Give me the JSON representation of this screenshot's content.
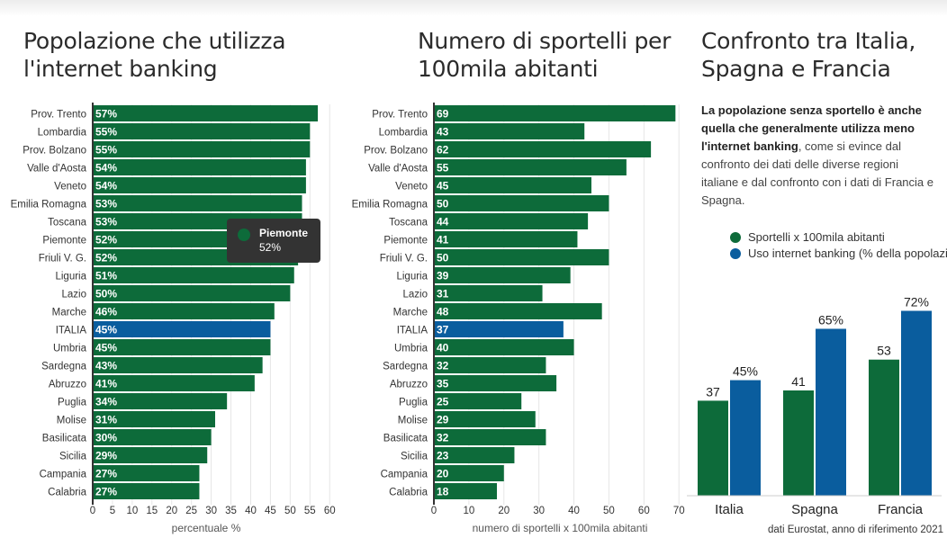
{
  "colors": {
    "green": "#0d6b3a",
    "blue": "#0a5d9e",
    "axis": "#333333",
    "grid": "#e6e6e6"
  },
  "titles": {
    "left": "Popolazione che utilizza l'internet banking",
    "middle": "Numero di sportelli per 100mila abitanti",
    "right": "Confronto tra Italia, Spagna e Francia"
  },
  "paragraph": {
    "bold": "La popolazione senza sportello è anche quella che generalmente utilizza meno l'internet banking",
    "normal": ", come si evince dal confronto dei dati delle diverse regioni italiane e dal confronto con i dati di Francia e Spagna."
  },
  "tooltip": {
    "name": "Piemonte",
    "value": "52%"
  },
  "source": "dati Eurostat, anno di riferimento 2021",
  "chart_data": [
    {
      "type": "bar",
      "orientation": "horizontal",
      "title": "Popolazione che utilizza l'internet banking",
      "categories": [
        "Prov. Trento",
        "Lombardia",
        "Prov. Bolzano",
        "Valle d'Aosta",
        "Veneto",
        "Emilia Romagna",
        "Toscana",
        "Piemonte",
        "Friuli V. G.",
        "Liguria",
        "Lazio",
        "Marche",
        "ITALIA",
        "Umbria",
        "Sardegna",
        "Abruzzo",
        "Puglia",
        "Molise",
        "Basilicata",
        "Sicilia",
        "Campania",
        "Calabria"
      ],
      "values": [
        57,
        55,
        55,
        54,
        54,
        53,
        53,
        52,
        52,
        51,
        50,
        46,
        45,
        45,
        43,
        41,
        34,
        31,
        30,
        29,
        27,
        27
      ],
      "label_suffix": "%",
      "highlight": "ITALIA",
      "xlabel": "percentuale %",
      "xlim": [
        0,
        62
      ],
      "xticks": [
        0,
        5,
        10,
        15,
        20,
        25,
        30,
        35,
        40,
        45,
        50,
        55,
        60
      ]
    },
    {
      "type": "bar",
      "orientation": "horizontal",
      "title": "Numero di sportelli per 100mila abitanti",
      "categories": [
        "Prov. Trento",
        "Lombardia",
        "Prov. Bolzano",
        "Valle d'Aosta",
        "Veneto",
        "Emilia Romagna",
        "Toscana",
        "Piemonte",
        "Friuli V. G.",
        "Liguria",
        "Lazio",
        "Marche",
        "ITALIA",
        "Umbria",
        "Sardegna",
        "Abruzzo",
        "Puglia",
        "Molise",
        "Basilicata",
        "Sicilia",
        "Campania",
        "Calabria"
      ],
      "values": [
        69,
        43,
        62,
        55,
        45,
        50,
        44,
        41,
        50,
        39,
        31,
        48,
        37,
        40,
        32,
        35,
        25,
        29,
        32,
        23,
        20,
        18
      ],
      "label_suffix": "",
      "highlight": "ITALIA",
      "xlabel": "numero di sportelli x 100mila abitanti",
      "xlim": [
        0,
        72
      ],
      "xticks": [
        0,
        10,
        20,
        30,
        40,
        50,
        60,
        70
      ]
    },
    {
      "type": "bar",
      "orientation": "vertical",
      "title": "Confronto tra Italia, Spagna e Francia",
      "categories": [
        "Italia",
        "Spagna",
        "Francia"
      ],
      "series": [
        {
          "name": "Sportelli x 100mila abitanti",
          "values": [
            37,
            41,
            53
          ],
          "labels": [
            "37",
            "41",
            "53"
          ]
        },
        {
          "name": "Uso internet banking (% della popolazione)",
          "values": [
            45,
            65,
            72
          ],
          "labels": [
            "45%",
            "65%",
            "72%"
          ]
        }
      ],
      "ylim": [
        0,
        80
      ],
      "legend": "top"
    }
  ]
}
